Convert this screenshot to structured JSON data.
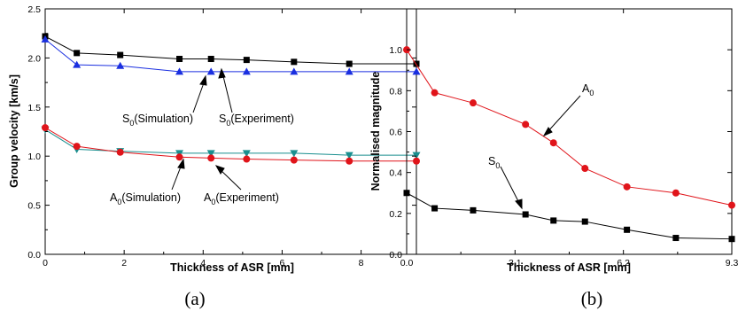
{
  "chart_data": [
    {
      "type": "line",
      "caption": "(a)",
      "xlabel": "Thickness of ASR [mm]",
      "ylabel": "Group velocity [km/s]",
      "xlim": [
        0,
        9.4
      ],
      "ylim": [
        0,
        2.5
      ],
      "xticks": [
        "0",
        "2",
        "4",
        "6",
        "8"
      ],
      "yticks": [
        "0.0",
        "0.5",
        "1.0",
        "1.5",
        "2.0",
        "2.5"
      ],
      "series": [
        {
          "marker": "square",
          "color": "#000000",
          "x": [
            0,
            0.8,
            1.9,
            3.4,
            4.2,
            5.1,
            6.3,
            7.7,
            9.4
          ],
          "y": [
            2.22,
            2.05,
            2.03,
            1.99,
            1.99,
            1.98,
            1.96,
            1.94,
            1.94
          ]
        },
        {
          "marker": "triangle-up",
          "color": "#1a2fe0",
          "x": [
            0,
            0.8,
            1.9,
            3.4,
            4.2,
            5.1,
            6.3,
            7.7,
            9.4
          ],
          "y": [
            2.19,
            1.93,
            1.92,
            1.86,
            1.86,
            1.86,
            1.86,
            1.86,
            1.86
          ]
        },
        {
          "marker": "triangle-down",
          "color": "#1a8f8f",
          "x": [
            0,
            0.8,
            1.9,
            3.4,
            4.2,
            5.1,
            6.3,
            7.7,
            9.4
          ],
          "y": [
            1.27,
            1.07,
            1.05,
            1.03,
            1.03,
            1.03,
            1.03,
            1.01,
            1.01
          ]
        },
        {
          "marker": "circle",
          "color": "#e0141a",
          "x": [
            0,
            0.8,
            1.9,
            3.4,
            4.2,
            5.1,
            6.3,
            7.7,
            9.4
          ],
          "y": [
            1.29,
            1.1,
            1.04,
            0.99,
            0.98,
            0.97,
            0.96,
            0.95,
            0.95
          ]
        }
      ],
      "annotations": [
        {
          "main": "S",
          "sub": "0",
          "rest": "(Simulation)"
        },
        {
          "main": "S",
          "sub": "0",
          "rest": "(Experiment)"
        },
        {
          "main": "A",
          "sub": "0",
          "rest": "(Simulation)"
        },
        {
          "main": "A",
          "sub": "0",
          "rest": "(Experiment)"
        }
      ]
    },
    {
      "type": "line",
      "caption": "(b)",
      "xlabel": "Thickness of ASR [mm]",
      "ylabel": "Normalised magnitude",
      "xlim": [
        0,
        9.3
      ],
      "ylim": [
        0,
        1.2
      ],
      "xticks": [
        "0.0",
        "3.1",
        "6.2",
        "9.3"
      ],
      "yticks": [
        "0.0",
        "0.2",
        "0.4",
        "0.6",
        "0.8",
        "1.0"
      ],
      "series": [
        {
          "marker": "circle",
          "color": "#e0141a",
          "x": [
            0,
            0.8,
            1.9,
            3.4,
            4.2,
            5.1,
            6.3,
            7.7,
            9.3
          ],
          "y": [
            1.0,
            0.79,
            0.74,
            0.635,
            0.545,
            0.42,
            0.33,
            0.3,
            0.24
          ]
        },
        {
          "marker": "square",
          "color": "#000000",
          "x": [
            0,
            0.8,
            1.9,
            3.4,
            4.2,
            5.1,
            6.3,
            7.7,
            9.3
          ],
          "y": [
            0.3,
            0.225,
            0.215,
            0.195,
            0.165,
            0.16,
            0.12,
            0.08,
            0.075
          ]
        }
      ],
      "annotations": [
        {
          "main": "A",
          "sub": "0",
          "rest": ""
        },
        {
          "main": "S",
          "sub": "0",
          "rest": ""
        }
      ]
    }
  ]
}
